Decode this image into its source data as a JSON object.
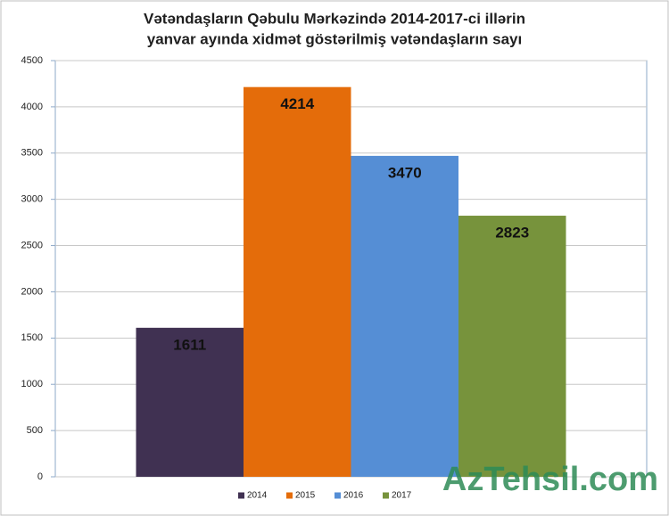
{
  "chart_data": {
    "type": "bar",
    "title": [
      "Vətəndaşların Qəbulu Mərkəzində 2014-2017-ci illərin",
      "yanvar ayında xidmət göstərilmiş vətəndaşların sayı"
    ],
    "categories": [
      null
    ],
    "series": [
      {
        "name": "2014",
        "color": "#403152",
        "values": [
          1611
        ]
      },
      {
        "name": "2015",
        "color": "#e46c0a",
        "values": [
          4214
        ]
      },
      {
        "name": "2016",
        "color": "#558ed5",
        "values": [
          3470
        ]
      },
      {
        "name": "2017",
        "color": "#77933c",
        "values": [
          2823
        ]
      }
    ],
    "ylim": [
      0,
      4500
    ],
    "yticks": [
      0,
      500,
      1000,
      1500,
      2000,
      2500,
      3000,
      3500,
      4000,
      4500
    ],
    "grid": true,
    "legend": "bottom"
  },
  "watermark": "AzTehsil.com"
}
